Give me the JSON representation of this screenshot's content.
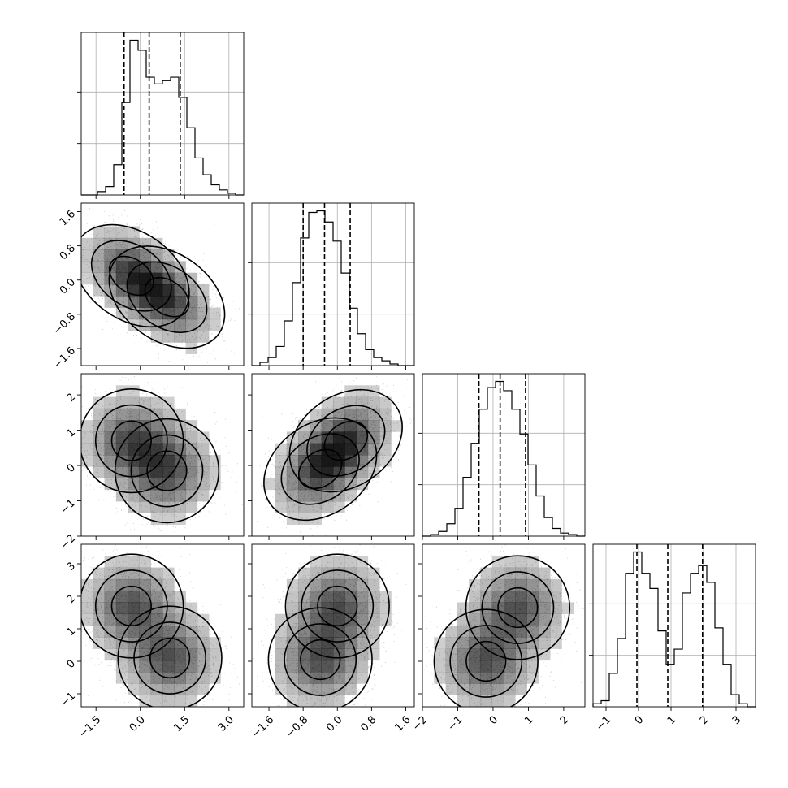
{
  "chart_data": {
    "type": "corner",
    "params": [
      {
        "name": "",
        "range": [
          -2.0,
          3.5
        ],
        "ticks": [
          -1.5,
          0.0,
          1.5,
          3.0
        ],
        "tick_labels": [
          "−1.5",
          "0.0",
          "1.5",
          "3.0"
        ],
        "quantiles": [
          -0.55,
          0.3,
          1.35
        ],
        "hist_edges_start": -2.0,
        "hist_bin_width": 0.275,
        "hist_counts": [
          0,
          0,
          2,
          5,
          18,
          55,
          92,
          86,
          70,
          66,
          68,
          70,
          58,
          40,
          22,
          12,
          6,
          3,
          1,
          0
        ]
      },
      {
        "name": "",
        "range": [
          -2.0,
          1.8
        ],
        "ticks": [
          -1.6,
          -0.8,
          0.0,
          0.8,
          1.6
        ],
        "tick_labels": [
          "−1.6",
          "−0.8",
          "0.0",
          "0.8",
          "1.6"
        ],
        "quantiles": [
          -0.8,
          -0.3,
          0.3
        ],
        "hist_edges_start": -2.0,
        "hist_bin_width": 0.19,
        "hist_counts": [
          0,
          2,
          5,
          12,
          28,
          52,
          80,
          96,
          97,
          90,
          78,
          58,
          36,
          20,
          10,
          5,
          3,
          1,
          0,
          0
        ]
      },
      {
        "name": "",
        "range": [
          -2.0,
          2.6
        ],
        "ticks": [
          -2,
          -1,
          0,
          1,
          2
        ],
        "tick_labels": [
          "−2",
          "−1",
          "0",
          "1",
          "2"
        ],
        "quantiles": [
          -0.4,
          0.2,
          0.92
        ],
        "hist_edges_start": -2.0,
        "hist_bin_width": 0.23,
        "hist_counts": [
          0,
          1,
          3,
          8,
          18,
          38,
          60,
          82,
          96,
          100,
          94,
          82,
          66,
          46,
          26,
          12,
          5,
          2,
          1,
          0
        ]
      },
      {
        "name": "",
        "range": [
          -1.4,
          3.6
        ],
        "ticks": [
          -1,
          0,
          1,
          2,
          3
        ],
        "tick_labels": [
          "−1",
          "0",
          "1",
          "2",
          "3"
        ],
        "quantiles": [
          -0.05,
          0.9,
          1.97
        ],
        "hist_edges_start": -1.4,
        "hist_bin_width": 0.25,
        "hist_counts": [
          2,
          4,
          22,
          45,
          88,
          102,
          88,
          78,
          50,
          28,
          38,
          75,
          88,
          93,
          82,
          52,
          28,
          8,
          2,
          0
        ]
      }
    ],
    "pairs": [
      {
        "x": 0,
        "y": 1,
        "modes": [
          [
            -0.3,
            0.1
          ],
          [
            0.9,
            -0.4
          ]
        ],
        "contour_levels": 3
      },
      {
        "x": 0,
        "y": 2,
        "modes": [
          [
            -0.3,
            0.7
          ],
          [
            0.9,
            -0.15
          ]
        ],
        "contour_levels": 3
      },
      {
        "x": 1,
        "y": 2,
        "modes": [
          [
            -0.4,
            -0.1
          ],
          [
            0.2,
            0.7
          ]
        ],
        "contour_levels": 3
      },
      {
        "x": 0,
        "y": 3,
        "modes": [
          [
            -0.3,
            1.7
          ],
          [
            1.0,
            0.1
          ]
        ],
        "contour_levels": 3
      },
      {
        "x": 1,
        "y": 3,
        "modes": [
          [
            -0.4,
            0.05
          ],
          [
            0.0,
            1.7
          ]
        ],
        "contour_levels": 3
      },
      {
        "x": 2,
        "y": 3,
        "modes": [
          [
            -0.2,
            0.0
          ],
          [
            0.7,
            1.65
          ]
        ],
        "contour_levels": 3
      }
    ],
    "xlabel": "",
    "ylabel": "",
    "grid": true,
    "colors": {
      "line": "#000000",
      "grid": "#b0b0b0",
      "density": "#000000"
    }
  }
}
